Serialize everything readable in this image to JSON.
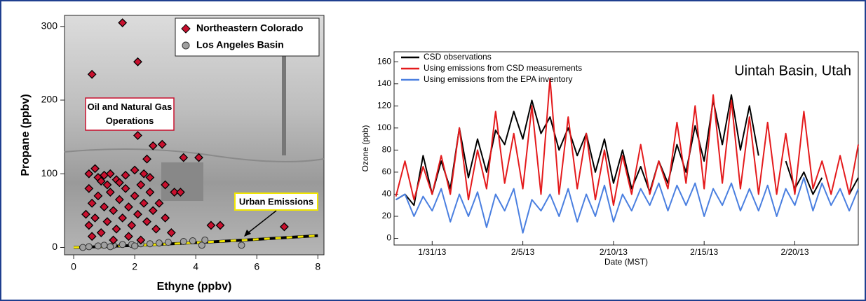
{
  "chart_data": [
    {
      "type": "scatter",
      "xlabel": "Ethyne (ppbv)",
      "ylabel": "Propane (ppbv)",
      "annotations": [
        "Oil and Natural Gas Operations",
        "Urban Emissions"
      ],
      "xlim": [
        -0.3,
        8.2
      ],
      "xticks": [
        0,
        2,
        4,
        6,
        8
      ],
      "ylim": [
        -10,
        315
      ],
      "yticks": [
        0,
        100,
        200,
        300
      ],
      "legend": "upper right",
      "series": [
        {
          "name": "Northeastern Colorado",
          "color": "#c8102e",
          "marker": "diamond",
          "x": [
            1.6,
            0.6,
            2.1,
            2.1,
            0.7,
            0.5,
            0.8,
            1.0,
            1.2,
            1.4,
            1.7,
            2.0,
            2.3,
            2.6,
            2.9,
            2.4,
            3.0,
            3.3,
            3.5,
            3.6,
            4.1,
            4.5,
            4.8,
            6.9,
            0.4,
            0.5,
            0.6,
            0.7,
            0.8,
            0.9,
            1.0,
            1.1,
            1.2,
            1.3,
            1.4,
            1.5,
            1.6,
            1.7,
            1.8,
            1.9,
            2.0,
            2.1,
            2.2,
            2.3,
            2.4,
            2.5,
            2.6,
            2.7,
            2.8,
            3.0,
            3.2,
            0.5,
            0.6,
            1.1,
            1.3,
            1.8,
            2.2,
            1.5,
            0.9,
            2.5
          ],
          "values": [
            305,
            235,
            252,
            152,
            107,
            100,
            95,
            98,
            100,
            92,
            98,
            105,
            100,
            138,
            140,
            120,
            85,
            75,
            75,
            122,
            122,
            30,
            30,
            28,
            45,
            30,
            60,
            40,
            70,
            20,
            55,
            35,
            75,
            50,
            25,
            65,
            40,
            80,
            55,
            30,
            70,
            45,
            85,
            60,
            35,
            75,
            50,
            25,
            60,
            40,
            20,
            80,
            15,
            85,
            10,
            15,
            10,
            88,
            90,
            95
          ]
        },
        {
          "name": "Los Angeles Basin",
          "color": "#a0a0a0",
          "marker": "circle",
          "x": [
            0.3,
            0.5,
            0.8,
            1.0,
            1.3,
            1.6,
            1.9,
            2.2,
            2.5,
            2.8,
            3.1,
            3.6,
            3.9,
            4.2,
            4.3,
            5.5,
            2.0,
            1.2
          ],
          "values": [
            0,
            1,
            2,
            3,
            3,
            4,
            4,
            5,
            5,
            6,
            7,
            8,
            9,
            3,
            10,
            3,
            2,
            1
          ]
        }
      ]
    },
    {
      "type": "line",
      "xlabel": "Date (MST)",
      "ylabel": "Ozone (ppb)",
      "annotation": "Uintah Basin, Utah",
      "xlim": [
        28.9,
        54.5
      ],
      "xticks": [
        {
          "value": 31,
          "label": "1/31/13"
        },
        {
          "value": 36,
          "label": "2/5/13"
        },
        {
          "value": 41,
          "label": "2/10/13"
        },
        {
          "value": 46,
          "label": "2/15/13"
        },
        {
          "value": 51,
          "label": "2/20/13"
        }
      ],
      "ylim": [
        -6,
        169
      ],
      "yticks": [
        0,
        20,
        40,
        60,
        80,
        100,
        120,
        140,
        160
      ],
      "legend": "upper left",
      "x": [
        29,
        29.5,
        30,
        30.5,
        31,
        31.5,
        32,
        32.5,
        33,
        33.5,
        34,
        34.5,
        35,
        35.5,
        36,
        36.5,
        37,
        37.5,
        38,
        38.5,
        39,
        39.5,
        40,
        40.5,
        41,
        41.5,
        42,
        42.5,
        43,
        43.5,
        44,
        44.5,
        45,
        45.5,
        46,
        46.5,
        47,
        47.5,
        48,
        48.5,
        49,
        49.5,
        50,
        50.5,
        51,
        51.5,
        52,
        52.5,
        53,
        53.5,
        54,
        54.5
      ],
      "series": [
        {
          "name": "CSD observations",
          "color": "#000000",
          "values": [
            35,
            40,
            30,
            75,
            40,
            70,
            45,
            100,
            55,
            90,
            60,
            98,
            85,
            115,
            90,
            125,
            95,
            110,
            80,
            100,
            75,
            95,
            60,
            90,
            50,
            80,
            45,
            65,
            42,
            70,
            50,
            85,
            60,
            102,
            70,
            125,
            85,
            130,
            80,
            120,
            75,
            null,
            null,
            70,
            45,
            60,
            40,
            55,
            null,
            null,
            40,
            55
          ]
        },
        {
          "name": "Using emissions from CSD measurements",
          "color": "#e41a1c",
          "values": [
            38,
            70,
            35,
            65,
            40,
            75,
            40,
            100,
            35,
            80,
            45,
            115,
            50,
            95,
            45,
            120,
            40,
            145,
            40,
            110,
            45,
            95,
            35,
            80,
            30,
            75,
            40,
            85,
            40,
            70,
            45,
            105,
            50,
            120,
            45,
            130,
            50,
            125,
            45,
            110,
            40,
            105,
            40,
            95,
            40,
            115,
            45,
            70,
            40,
            75,
            40,
            85
          ]
        },
        {
          "name": "Using emissions from the EPA inventory",
          "color": "#4a7fe0",
          "values": [
            35,
            40,
            20,
            38,
            25,
            45,
            15,
            40,
            20,
            42,
            10,
            40,
            25,
            45,
            5,
            35,
            25,
            40,
            20,
            45,
            15,
            40,
            20,
            48,
            15,
            40,
            25,
            45,
            30,
            50,
            25,
            48,
            30,
            50,
            20,
            45,
            30,
            50,
            25,
            45,
            25,
            48,
            20,
            45,
            30,
            55,
            25,
            50,
            30,
            45,
            25,
            45
          ]
        }
      ]
    }
  ]
}
